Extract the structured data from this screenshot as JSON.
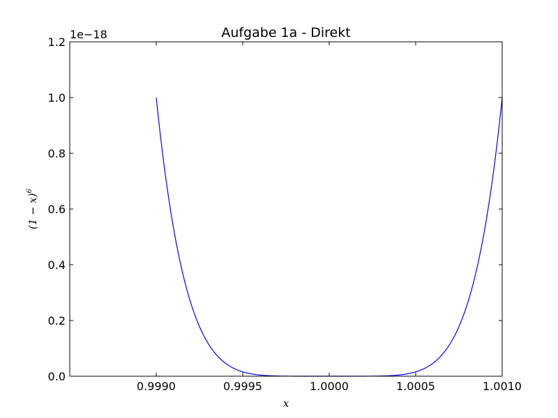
{
  "chart_data": {
    "type": "line",
    "title": "Aufgabe 1a - Direkt",
    "xlabel": "x",
    "ylabel_parts": {
      "base": "(1 − x)",
      "exponent": "6"
    },
    "y_offset_label": "1e−18",
    "xlim": [
      0.9985,
      1.001
    ],
    "ylim": [
      0.0,
      1.2
    ],
    "x_ticks": [
      0.999,
      0.9995,
      1.0,
      1.0005,
      1.001
    ],
    "x_tick_labels": [
      "0.9990",
      "0.9995",
      "1.0000",
      "1.0005",
      "1.0010"
    ],
    "y_ticks": [
      0.0,
      0.2,
      0.4,
      0.6,
      0.8,
      1.0,
      1.2
    ],
    "y_tick_labels": [
      "0.0",
      "0.2",
      "0.4",
      "0.6",
      "0.8",
      "1.0",
      "1.2"
    ],
    "grid": false,
    "series": [
      {
        "function": "(1-x)^6",
        "x_range": [
          0.999,
          1.001
        ],
        "y_scale": 1e+18,
        "color": "#0000ff",
        "x": [
          0.999,
          0.99925,
          0.9995,
          0.99975,
          1.0,
          1.00025,
          1.0005,
          1.00075,
          1.001
        ],
        "y": [
          1.0,
          0.178,
          0.0156,
          0.000244,
          0.0,
          0.000244,
          0.0156,
          0.178,
          1.0
        ]
      }
    ]
  }
}
